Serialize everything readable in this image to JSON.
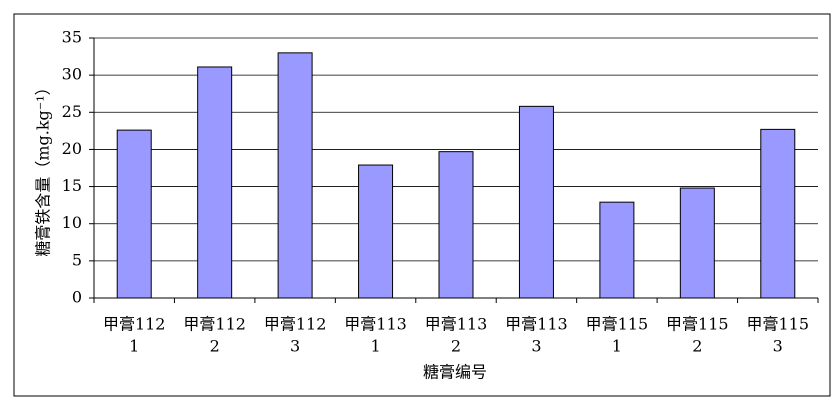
{
  "chart_data": {
    "type": "bar",
    "y_label": "糖膏铁含量（mg.kg⁻¹）",
    "x_label": "糖膏编号",
    "categories": [
      [
        "甲膏112",
        "1"
      ],
      [
        "甲膏112",
        "2"
      ],
      [
        "甲膏112",
        "3"
      ],
      [
        "甲膏113",
        "1"
      ],
      [
        "甲膏113",
        "2"
      ],
      [
        "甲膏113",
        "3"
      ],
      [
        "甲膏115",
        "1"
      ],
      [
        "甲膏115",
        "2"
      ],
      [
        "甲膏115",
        "3"
      ]
    ],
    "values": [
      22.6,
      31.1,
      33.0,
      17.9,
      19.7,
      25.8,
      12.9,
      14.8,
      22.7
    ],
    "color": "#9999ff",
    "ylim": [
      0,
      35
    ],
    "yticks": [
      0,
      5,
      10,
      15,
      20,
      25,
      30,
      35
    ],
    "grid": true
  }
}
